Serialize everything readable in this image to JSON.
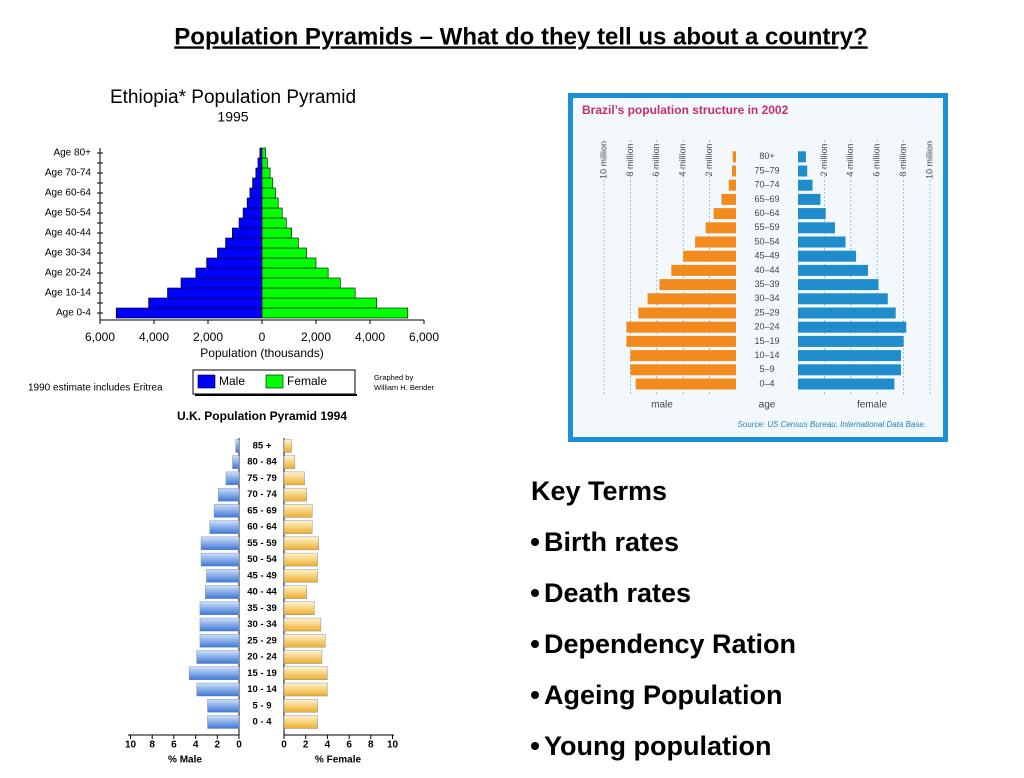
{
  "title": "Population Pyramids – What do they tell us about a country?",
  "chart_data": [
    {
      "type": "pyramid",
      "title": "Ethiopia* Population Pyramid",
      "subtitle": "1995",
      "x_label": "Population (thousands)",
      "categories": [
        "Age 0-4",
        null,
        "Age 10-14",
        null,
        "Age 20-24",
        null,
        "Age 30-34",
        null,
        "Age 40-44",
        null,
        "Age 50-54",
        null,
        "Age 60-64",
        null,
        "Age 70-74",
        null,
        "Age 80+"
      ],
      "series": [
        {
          "name": "Male",
          "color": "#0000ff",
          "values": [
            5400,
            4200,
            3500,
            3000,
            2450,
            2050,
            1650,
            1350,
            1100,
            850,
            700,
            550,
            450,
            350,
            230,
            150,
            80
          ]
        },
        {
          "name": "Female",
          "color": "#00ff00",
          "values": [
            5400,
            4250,
            3450,
            2900,
            2450,
            2000,
            1650,
            1350,
            1100,
            900,
            750,
            600,
            500,
            400,
            300,
            200,
            130
          ]
        }
      ],
      "xlim": [
        0,
        6000
      ],
      "male_xticks": [
        {
          "value": 6000,
          "label": "6,000"
        },
        {
          "value": 4000,
          "label": "4,000"
        },
        {
          "value": 2000,
          "label": "2,000"
        },
        0
      ],
      "female_xticks": [
        {
          "value": 2000,
          "label": "2,000"
        },
        {
          "value": 4000,
          "label": "4,000"
        },
        {
          "value": 6000,
          "label": "6,000"
        }
      ],
      "legend": "bottom",
      "grid": false,
      "note": "1990 estimate includes Eritrea",
      "credit": [
        "Graphed by",
        "William H. Bender"
      ]
    },
    {
      "type": "pyramid",
      "title": "Brazil’s population structure in 2002",
      "categories": [
        "0–4",
        "5–9",
        "10–14",
        "15–19",
        "20–24",
        "25–29",
        "30–34",
        "35–39",
        "40–44",
        "45–49",
        "50–54",
        "55–59",
        "60–64",
        "65–69",
        "70–74",
        "75–79",
        "80+"
      ],
      "category_label": "age",
      "series": [
        {
          "name": "male",
          "color": "#f28a1e",
          "values": [
            7.6,
            8.0,
            8.0,
            8.3,
            8.3,
            7.4,
            6.7,
            5.8,
            4.9,
            4.0,
            3.1,
            2.3,
            1.7,
            1.1,
            0.55,
            0.3,
            0.25
          ]
        },
        {
          "name": "female",
          "color": "#1f8ccc",
          "values": [
            7.3,
            7.8,
            7.8,
            8.0,
            8.2,
            7.4,
            6.8,
            6.1,
            5.3,
            4.4,
            3.6,
            2.8,
            2.1,
            1.7,
            1.1,
            0.7,
            0.6
          ]
        }
      ],
      "xlim": [
        0,
        10
      ],
      "male_xticks": [
        {
          "value": 10,
          "label": "10 million"
        },
        {
          "value": 8,
          "label": "8 million"
        },
        {
          "value": 6,
          "label": "6 million"
        },
        {
          "value": 4,
          "label": "4 million"
        },
        {
          "value": 2,
          "label": "2 million"
        }
      ],
      "female_xticks": [
        {
          "value": 2,
          "label": "2 million"
        },
        {
          "value": 4,
          "label": "4 million"
        },
        {
          "value": 6,
          "label": "6 million"
        },
        {
          "value": 8,
          "label": "8 million"
        },
        {
          "value": 10,
          "label": "10 million"
        }
      ],
      "grid": true,
      "source": "Source: US Census Bureau, International Data Base."
    },
    {
      "type": "pyramid",
      "title": "U.K. Population Pyramid 1994",
      "categories": [
        "0 - 4",
        "5 - 9",
        "10 - 14",
        "15 - 19",
        "20 - 24",
        "25 - 29",
        "30 - 34",
        "35 - 39",
        "40 - 44",
        "45 - 49",
        "50 - 54",
        "55 - 59",
        "60 - 64",
        "65 - 69",
        "70 - 74",
        "75 - 79",
        "80 - 84",
        "85 +"
      ],
      "series": [
        {
          "name": "Male",
          "color": "#5b8fdc",
          "values": [
            2.9,
            2.9,
            3.9,
            4.6,
            3.9,
            3.6,
            3.6,
            3.6,
            3.1,
            3.0,
            3.5,
            3.5,
            2.7,
            2.3,
            1.9,
            1.2,
            0.6,
            0.3
          ]
        },
        {
          "name": "Female",
          "color": "#f5c55a",
          "values": [
            3.1,
            3.1,
            4.0,
            4.0,
            3.5,
            3.8,
            3.4,
            2.8,
            2.1,
            3.1,
            3.1,
            3.2,
            2.6,
            2.6,
            2.1,
            1.9,
            1.0,
            0.7
          ]
        }
      ],
      "xlim": [
        0,
        10
      ],
      "male_xticks": [
        10,
        8,
        6,
        4,
        2,
        0
      ],
      "female_xticks": [
        0,
        2,
        4,
        6,
        8,
        10
      ],
      "x_labels": [
        "% Male",
        "% Female"
      ],
      "grid": false
    }
  ],
  "key_terms": {
    "heading": "Key Terms",
    "items": [
      "Birth rates",
      "Death rates",
      "Dependency Ration",
      "Ageing Population",
      "Young population"
    ]
  }
}
